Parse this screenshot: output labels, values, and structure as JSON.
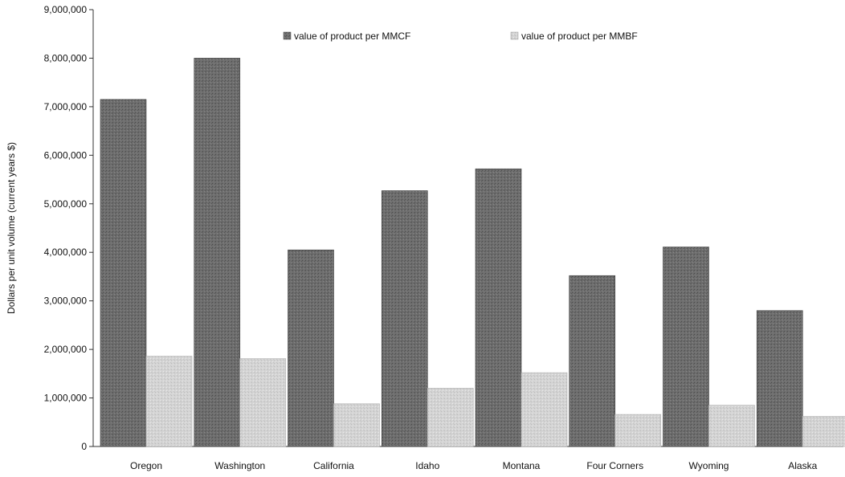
{
  "chart_data": {
    "type": "bar",
    "title": "",
    "xlabel": "",
    "ylabel": "Dollars per unit volume (current years $)",
    "ylim": [
      0,
      9000000
    ],
    "yticks": [
      "0",
      "1,000,000",
      "2,000,000",
      "3,000,000",
      "4,000,000",
      "5,000,000",
      "6,000,000",
      "7,000,000",
      "8,000,000",
      "9,000,000"
    ],
    "categories": [
      "Oregon",
      "Washington",
      "California",
      "Idaho",
      "Montana",
      "Four Corners",
      "Wyoming",
      "Alaska"
    ],
    "series": [
      {
        "name": "value of product per MMCF",
        "color": "#6e6e6e",
        "values": [
          7150000,
          8000000,
          4050000,
          5270000,
          5720000,
          3520000,
          4110000,
          2800000
        ]
      },
      {
        "name": "value of product per MMBF",
        "color": "#d2d2d2",
        "values": [
          1860000,
          1810000,
          880000,
          1200000,
          1520000,
          660000,
          850000,
          620000
        ]
      }
    ],
    "grid": false,
    "legend_position": "top"
  }
}
